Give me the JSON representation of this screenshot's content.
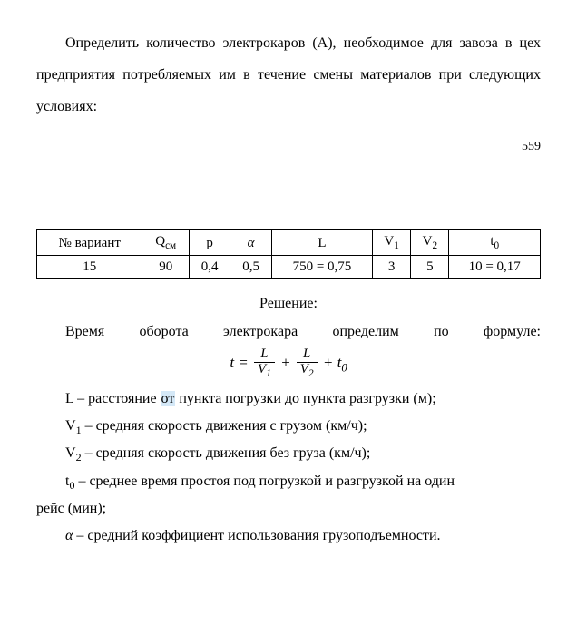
{
  "intro": {
    "para": "Определить количество электрокаров (А), необходимое для завоза в цех предприятия потребляемых им в течение смены материалов при следующих условиях:"
  },
  "page_number": "559",
  "table": {
    "headers": {
      "variant": "№ вариант",
      "qsm": "Q",
      "qsm_sub": "см",
      "p": "p",
      "alpha": "α",
      "L": "L",
      "v1": "V",
      "v1_sub": "1",
      "v2": "V",
      "v2_sub": "2",
      "t0": "t",
      "t0_sub": "0"
    },
    "row": {
      "variant": "15",
      "qsm": "90",
      "p": "0,4",
      "alpha": "0,5",
      "L": "750 = 0,75",
      "v1": "3",
      "v2": "5",
      "t0": "10 = 0,17"
    }
  },
  "solution_label": "Решение:",
  "time_line": {
    "w1": "Время",
    "w2": "оборота",
    "w3": "электрокара",
    "w4": "определим",
    "w5": "по",
    "w6": "формуле:"
  },
  "formula": {
    "lhs": "t =",
    "num1": "L",
    "den1_a": "V",
    "den1_b": "1",
    "plus1": " + ",
    "num2": "L",
    "den2_a": "V",
    "den2_b": "2",
    "plus2": " + ",
    "t0_a": "t",
    "t0_b": "0"
  },
  "defs": {
    "L_pre": "L – расстояние ",
    "L_hl": "от",
    "L_post": " пункта погрузки до пункта разгрузки (м);",
    "V1_pre": "V",
    "V1_sub": "1",
    "V1_post": " – средняя скорость движения с грузом (км/ч);",
    "V2_pre": "V",
    "V2_sub": "2",
    "V2_post": " – средняя скорость движения без груза (км/ч);",
    "t0_pre": "t",
    "t0_sub": "0",
    "t0_post": " –  среднее время простоя под погрузкой и разгрузкой на один",
    "t0_cont": "рейс (мин);",
    "alpha_pre": "α",
    "alpha_post": " – средний коэффициент использования грузоподъемности."
  }
}
